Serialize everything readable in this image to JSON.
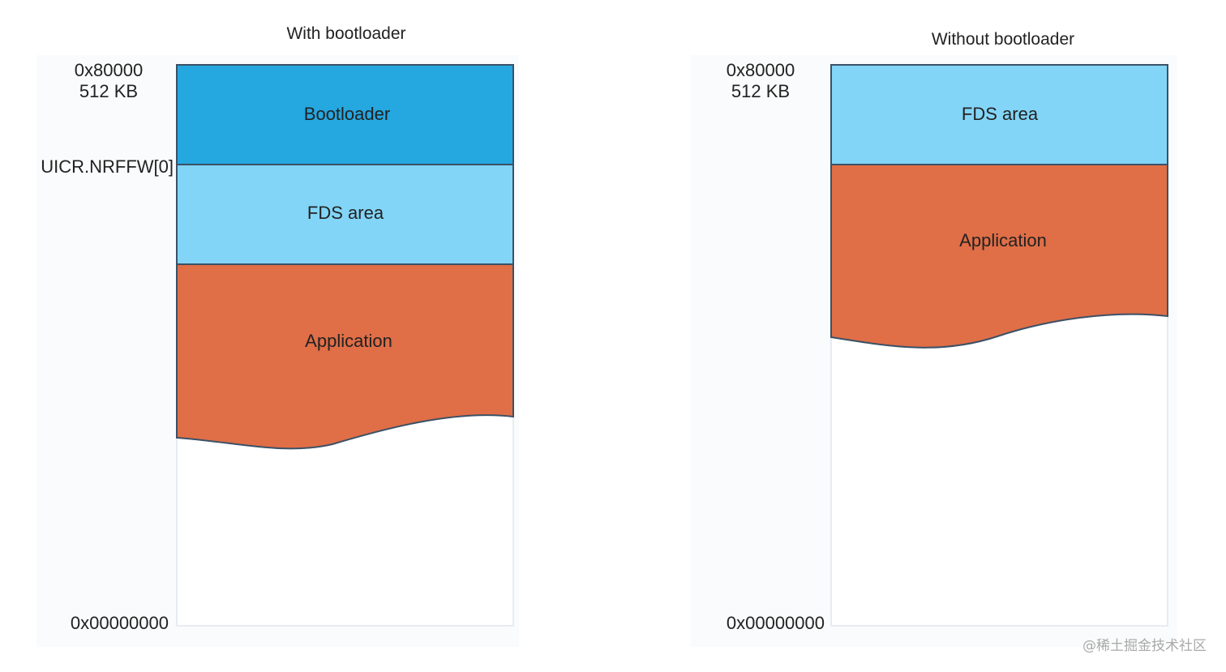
{
  "diagrams": [
    {
      "title": "With bootloader",
      "top_address": "0x80000",
      "top_size": "512 KB",
      "boundary_label": "UICR.NRFFW[0]",
      "bottom_address": "0x00000000",
      "regions": [
        {
          "label": "Bootloader",
          "color": "#25a7e0"
        },
        {
          "label": "FDS area",
          "color": "#82d5f7"
        },
        {
          "label": "Application",
          "color": "#e06e47"
        }
      ]
    },
    {
      "title": "Without bootloader",
      "top_address": "0x80000",
      "top_size": "512 KB",
      "bottom_address": "0x00000000",
      "regions": [
        {
          "label": "FDS area",
          "color": "#82d5f7"
        },
        {
          "label": "Application",
          "color": "#e06e47"
        }
      ]
    }
  ],
  "watermark": "@稀土掘金技术社区",
  "colors": {
    "border": "#3b5166",
    "memory_outline": "#e7ecf3",
    "panel_bg": "#fafbfc",
    "text": "#222222"
  }
}
